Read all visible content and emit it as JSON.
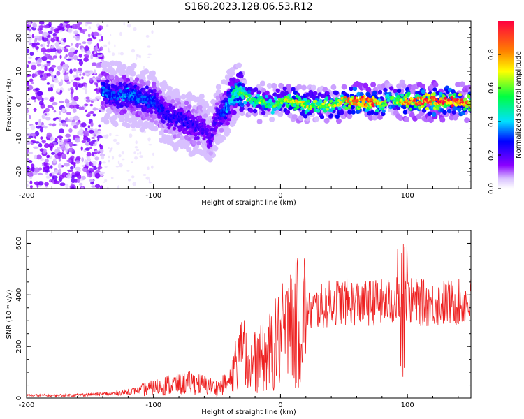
{
  "title": "S168.2023.128.06.53.R12",
  "chart_data": [
    {
      "type": "heatmap",
      "xlabel": "Height of straight line (km)",
      "ylabel": "Frequency (Hz)",
      "xlim": [
        -200,
        150
      ],
      "ylim": [
        -25,
        25
      ],
      "x_ticks": [
        -200,
        -100,
        0,
        100
      ],
      "y_ticks": [
        -20,
        -10,
        0,
        10,
        20
      ],
      "colorbar": {
        "label": "Normalized spectral amplitude",
        "range": [
          0.0,
          1.0
        ],
        "ticks": [
          0.0,
          0.2,
          0.4,
          0.6,
          0.8
        ],
        "tick_labels": [
          "0.0",
          "0.2",
          "0.4",
          "0.6",
          "0.8"
        ],
        "colors": [
          "#ffffff",
          "#8a00ff",
          "#0000ff",
          "#00e0ff",
          "#00ff40",
          "#ffff00",
          "#ff8000",
          "#ff0040"
        ]
      },
      "ridge": {
        "x": [
          -140,
          -130,
          -120,
          -110,
          -100,
          -90,
          -80,
          -70,
          -60,
          -55,
          -50,
          -45,
          -40,
          -35,
          -30,
          -25,
          -20,
          -15,
          -10,
          -5,
          0,
          10,
          20,
          30,
          40,
          50,
          60,
          70,
          80,
          85,
          90,
          95,
          100,
          110,
          120,
          130,
          140,
          150
        ],
        "y": [
          4,
          3,
          3,
          2,
          1,
          -3,
          -4,
          -6,
          -7,
          -10,
          -3,
          -2,
          1,
          4,
          3,
          2,
          1,
          1,
          0,
          0,
          1,
          1,
          0,
          0,
          0,
          1,
          1,
          1,
          0,
          2,
          1,
          1,
          1,
          1,
          1,
          1,
          1,
          0
        ],
        "amplitude": [
          0.35,
          0.3,
          0.35,
          0.3,
          0.3,
          0.25,
          0.25,
          0.25,
          0.2,
          0.2,
          0.2,
          0.3,
          0.4,
          0.5,
          0.55,
          0.6,
          0.6,
          0.65,
          0.5,
          0.55,
          0.6,
          0.75,
          0.65,
          0.6,
          0.65,
          0.75,
          0.9,
          0.95,
          0.7,
          0.5,
          0.6,
          0.75,
          0.85,
          0.9,
          0.95,
          0.95,
          0.9,
          0.8
        ]
      },
      "noise_region": {
        "x_range": [
          -200,
          -140
        ],
        "y_range": [
          -25,
          25
        ],
        "amplitude": 0.15
      }
    },
    {
      "type": "line",
      "xlabel": "Height of straight line (km)",
      "ylabel": "SNR (10 * v/v)",
      "xlim": [
        -200,
        150
      ],
      "ylim": [
        0,
        650
      ],
      "x_ticks": [
        -200,
        -100,
        0,
        100
      ],
      "y_ticks": [
        0,
        200,
        400,
        600
      ],
      "color": "#ee2020",
      "series": [
        {
          "x": [
            -200,
            -180,
            -160,
            -140,
            -130,
            -120,
            -110,
            -100,
            -90,
            -80,
            -70,
            -60,
            -50,
            -40,
            -35,
            -30,
            -25,
            -20,
            -15,
            -10,
            -5,
            0,
            5,
            10,
            15,
            20,
            25,
            30,
            40,
            50,
            60,
            70,
            80,
            90,
            95,
            100,
            110,
            120,
            130,
            140,
            150
          ],
          "y": [
            10,
            10,
            12,
            15,
            18,
            25,
            30,
            40,
            50,
            55,
            60,
            50,
            40,
            60,
            150,
            160,
            130,
            140,
            150,
            170,
            200,
            230,
            250,
            280,
            300,
            330,
            340,
            350,
            370,
            375,
            370,
            370,
            370,
            375,
            380,
            375,
            370,
            365,
            370,
            370,
            375
          ]
        }
      ]
    }
  ]
}
